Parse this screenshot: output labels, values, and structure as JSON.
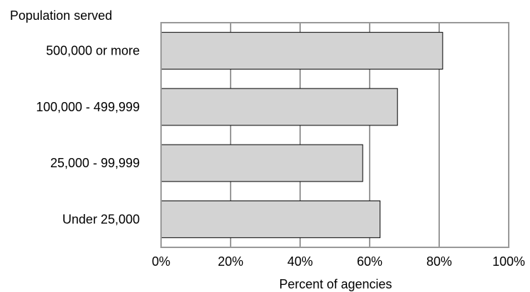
{
  "chart_data": {
    "type": "bar",
    "orientation": "horizontal",
    "categories": [
      "500,000 or more",
      "100,000 - 499,999",
      "25,000 - 99,999",
      "Under 25,000"
    ],
    "values": [
      81,
      68,
      58,
      63
    ],
    "category_axis_title": "Population served",
    "xlabel": "Percent of agencies",
    "xlim": [
      0,
      100
    ],
    "x_ticks": [
      0,
      20,
      40,
      60,
      80,
      100
    ],
    "x_tick_labels": [
      "0%",
      "20%",
      "40%",
      "60%",
      "80%",
      "100%"
    ],
    "grid": "vertical",
    "legend": "none",
    "colors": {
      "bar_fill": "#d3d3d3",
      "bar_stroke": "#000000",
      "gridline": "#999999",
      "plot_border": "#999999"
    }
  }
}
